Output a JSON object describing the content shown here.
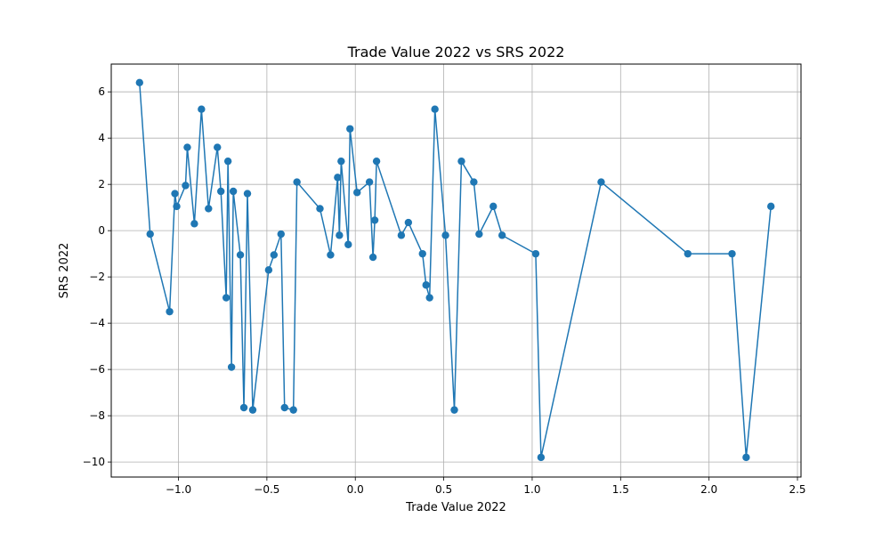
{
  "chart_data": {
    "type": "line",
    "title": "Trade Value 2022 vs SRS 2022",
    "xlabel": "Trade Value 2022",
    "ylabel": "SRS 2022",
    "xlim": [
      -1.38,
      2.52
    ],
    "ylim": [
      -10.65,
      7.2
    ],
    "xticks": [
      -1.0,
      -0.5,
      0.0,
      0.5,
      1.0,
      1.5,
      2.0,
      2.5
    ],
    "xtick_labels": [
      "−1.0",
      "−0.5",
      "0.0",
      "0.5",
      "1.0",
      "1.5",
      "2.0",
      "2.5"
    ],
    "yticks": [
      -10,
      -8,
      -6,
      -4,
      -2,
      0,
      2,
      4,
      6
    ],
    "ytick_labels": [
      "−10",
      "−8",
      "−6",
      "−4",
      "−2",
      "0",
      "2",
      "4",
      "6"
    ],
    "grid": true,
    "color": "#1f77b4",
    "series": [
      {
        "x": [
          -1.22,
          -1.16,
          -1.05,
          -1.02,
          -1.01,
          -0.96,
          -0.95,
          -0.91,
          -0.87,
          -0.83,
          -0.78,
          -0.76,
          -0.73,
          -0.72,
          -0.7,
          -0.69,
          -0.65,
          -0.63,
          -0.61,
          -0.58,
          -0.49,
          -0.46,
          -0.42,
          -0.4,
          -0.35,
          -0.33,
          -0.2,
          -0.14,
          -0.1,
          -0.09,
          -0.08,
          -0.04,
          -0.03,
          0.01,
          0.08,
          0.1,
          0.11,
          0.12,
          0.26,
          0.3,
          0.38,
          0.4,
          0.42,
          0.45,
          0.51,
          0.56,
          0.6,
          0.67,
          0.7,
          0.78,
          0.83,
          1.02,
          1.05,
          1.39,
          1.88,
          2.13,
          2.21,
          2.35
        ],
        "y": [
          6.4,
          -0.15,
          -3.5,
          1.6,
          1.05,
          1.95,
          3.6,
          0.3,
          5.25,
          0.95,
          3.6,
          1.7,
          -2.9,
          3.0,
          -5.9,
          1.7,
          -1.05,
          -7.65,
          1.6,
          -7.75,
          -1.7,
          -1.05,
          -0.15,
          -7.65,
          -7.75,
          2.1,
          0.95,
          -1.05,
          2.3,
          -0.2,
          3.0,
          -0.6,
          4.4,
          1.65,
          2.1,
          -1.15,
          0.45,
          3.0,
          -0.2,
          0.35,
          -1.0,
          -2.35,
          -2.9,
          5.25,
          -0.2,
          -7.75,
          3.0,
          2.1,
          -0.15,
          1.05,
          -0.2,
          -1.0,
          -9.8,
          2.1,
          -1.0,
          -1.0,
          -9.8,
          1.05
        ]
      }
    ]
  }
}
